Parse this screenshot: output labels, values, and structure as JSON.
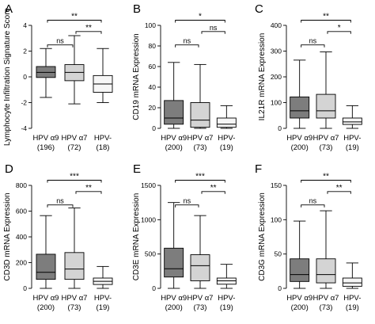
{
  "colors": {
    "hpv_a9": "#7d7d7d",
    "hpv_a7": "#d4d4d4",
    "hpv_neg": "#f6f6f6",
    "stroke": "#000000"
  },
  "chart_data": [
    {
      "type": "box",
      "panel_letter": "A",
      "ylabel": "Lymphocyte Infiltration Signature Score",
      "ylim": [
        -4,
        4
      ],
      "yticks": [
        "-4",
        "-2",
        "0",
        "2",
        "4"
      ],
      "categories": [
        "HPV α9",
        "HPV α7",
        "HPV-"
      ],
      "counts": [
        "(196)",
        "(72)",
        "(18)"
      ],
      "boxes": [
        {
          "min": -1.6,
          "q1": -0.05,
          "median": 0.35,
          "q3": 0.8,
          "max": 2.2
        },
        {
          "min": -2.1,
          "q1": -0.3,
          "median": 0.35,
          "q3": 0.95,
          "max": 3.2
        },
        {
          "min": -2.0,
          "q1": -1.2,
          "median": -0.55,
          "q3": 0.1,
          "max": 2.2
        }
      ],
      "comparisons": [
        {
          "from": 0,
          "to": 1,
          "label": "ns"
        },
        {
          "from": 1,
          "to": 2,
          "label": "**"
        },
        {
          "from": 0,
          "to": 2,
          "label": "**"
        }
      ]
    },
    {
      "type": "box",
      "panel_letter": "B",
      "ylabel": "CD19 mRNA Expression",
      "ylim": [
        0,
        100
      ],
      "yticks": [
        "0",
        "20",
        "40",
        "60",
        "80",
        "100"
      ],
      "categories": [
        "HPV α9",
        "HPV α7",
        "HPV-"
      ],
      "counts": [
        "(200)",
        "(73)",
        "(19)"
      ],
      "boxes": [
        {
          "min": 0,
          "q1": 4,
          "median": 10,
          "q3": 27,
          "max": 64
        },
        {
          "min": 0,
          "q1": 1,
          "median": 8,
          "q3": 25,
          "max": 62
        },
        {
          "min": 0,
          "q1": 1,
          "median": 4,
          "q3": 10,
          "max": 22
        }
      ],
      "comparisons": [
        {
          "from": 0,
          "to": 1,
          "label": "ns"
        },
        {
          "from": 1,
          "to": 2,
          "label": "ns"
        },
        {
          "from": 0,
          "to": 2,
          "label": "*"
        }
      ]
    },
    {
      "type": "box",
      "panel_letter": "C",
      "ylabel": "IL21R mRNA Expression",
      "ylim": [
        0,
        400
      ],
      "yticks": [
        "0",
        "100",
        "200",
        "300",
        "400"
      ],
      "categories": [
        "HPV α9",
        "HPV α7",
        "HPV-"
      ],
      "counts": [
        "(200)",
        "(73)",
        "(19)"
      ],
      "boxes": [
        {
          "min": 0,
          "q1": 40,
          "median": 68,
          "q3": 122,
          "max": 265
        },
        {
          "min": 0,
          "q1": 40,
          "median": 68,
          "q3": 132,
          "max": 297
        },
        {
          "min": 0,
          "q1": 15,
          "median": 25,
          "q3": 40,
          "max": 88
        }
      ],
      "comparisons": [
        {
          "from": 0,
          "to": 1,
          "label": "ns"
        },
        {
          "from": 1,
          "to": 2,
          "label": "*"
        },
        {
          "from": 0,
          "to": 2,
          "label": "**"
        }
      ]
    },
    {
      "type": "box",
      "panel_letter": "D",
      "ylabel": "CD3D mRNA Expression",
      "ylim": [
        0,
        800
      ],
      "yticks": [
        "0",
        "200",
        "400",
        "600",
        "800"
      ],
      "categories": [
        "HPV α9",
        "HPV α7",
        "HPV-"
      ],
      "counts": [
        "(200)",
        "(73)",
        "(19)"
      ],
      "boxes": [
        {
          "min": 0,
          "q1": 70,
          "median": 125,
          "q3": 265,
          "max": 565
        },
        {
          "min": 0,
          "q1": 70,
          "median": 150,
          "q3": 278,
          "max": 625
        },
        {
          "min": 0,
          "q1": 30,
          "median": 55,
          "q3": 80,
          "max": 170
        }
      ],
      "comparisons": [
        {
          "from": 0,
          "to": 1,
          "label": "ns"
        },
        {
          "from": 1,
          "to": 2,
          "label": "**"
        },
        {
          "from": 0,
          "to": 2,
          "label": "***"
        }
      ]
    },
    {
      "type": "box",
      "panel_letter": "E",
      "ylabel": "CD3E mRNA Expression",
      "ylim": [
        0,
        1500
      ],
      "yticks": [
        "0",
        "500",
        "1000",
        "1500"
      ],
      "categories": [
        "HPV α9",
        "HPV α7",
        "HPV-"
      ],
      "counts": [
        "(200)",
        "(73)",
        "(19)"
      ],
      "boxes": [
        {
          "min": 0,
          "q1": 165,
          "median": 285,
          "q3": 585,
          "max": 1250
        },
        {
          "min": 0,
          "q1": 110,
          "median": 330,
          "q3": 490,
          "max": 1060
        },
        {
          "min": 0,
          "q1": 60,
          "median": 110,
          "q3": 150,
          "max": 350
        }
      ],
      "comparisons": [
        {
          "from": 0,
          "to": 1,
          "label": "ns"
        },
        {
          "from": 1,
          "to": 2,
          "label": "**"
        },
        {
          "from": 0,
          "to": 2,
          "label": "***"
        }
      ]
    },
    {
      "type": "box",
      "panel_letter": "F",
      "ylabel": "CD3G mRNA Expression",
      "ylim": [
        0,
        150
      ],
      "yticks": [
        "0",
        "50",
        "100",
        "150"
      ],
      "categories": [
        "HPV α9",
        "HPV α7",
        "HPV-"
      ],
      "counts": [
        "(200)",
        "(73)",
        "(19)"
      ],
      "boxes": [
        {
          "min": 0,
          "q1": 10,
          "median": 20,
          "q3": 43,
          "max": 98
        },
        {
          "min": 0,
          "q1": 8,
          "median": 20,
          "q3": 43,
          "max": 113
        },
        {
          "min": 0,
          "q1": 3,
          "median": 8,
          "q3": 15,
          "max": 37
        }
      ],
      "comparisons": [
        {
          "from": 0,
          "to": 1,
          "label": "ns"
        },
        {
          "from": 1,
          "to": 2,
          "label": "**"
        },
        {
          "from": 0,
          "to": 2,
          "label": "**"
        }
      ]
    }
  ]
}
